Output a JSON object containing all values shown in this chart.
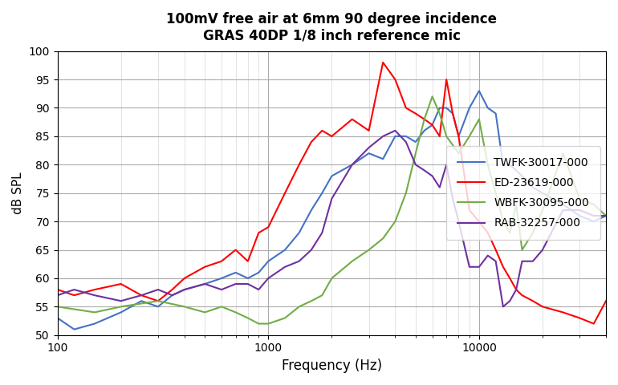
{
  "title_line1": "100mV free air at 6mm 90 degree incidence",
  "title_line2": "GRAS 40DP 1/8 inch reference mic",
  "xlabel": "Frequency (Hz)",
  "ylabel": "dB SPL",
  "xlim": [
    100,
    40000
  ],
  "ylim": [
    50,
    100
  ],
  "yticks": [
    50,
    55,
    60,
    65,
    70,
    75,
    80,
    85,
    90,
    95,
    100
  ],
  "colors": {
    "TWFK": "#4472C4",
    "ED": "#FF0000",
    "WBFK": "#70AD47",
    "RAB": "#7030A0"
  },
  "legend_labels": [
    "TWFK-30017-000",
    "ED-23619-000",
    "WBFK-30095-000",
    "RAB-32257-000"
  ],
  "background_color": "#FFFFFF",
  "TWFK_freq": [
    100,
    120,
    150,
    200,
    250,
    300,
    350,
    400,
    500,
    600,
    700,
    800,
    900,
    1000,
    1200,
    1400,
    1600,
    1800,
    2000,
    2500,
    3000,
    3500,
    4000,
    4500,
    5000,
    5500,
    6000,
    6500,
    7000,
    7500,
    8000,
    9000,
    10000,
    11000,
    12000,
    13000,
    14000,
    15000,
    16000,
    18000,
    20000,
    25000,
    30000,
    35000,
    40000
  ],
  "TWFK_spl": [
    53,
    51,
    52,
    54,
    56,
    55,
    57,
    58,
    59,
    60,
    61,
    60,
    61,
    63,
    65,
    68,
    72,
    75,
    78,
    80,
    82,
    81,
    85,
    85,
    84,
    86,
    87,
    90,
    90,
    89,
    85,
    90,
    93,
    90,
    89,
    80,
    80,
    79,
    78,
    76,
    75,
    73,
    71,
    70,
    71
  ],
  "ED_freq": [
    100,
    120,
    150,
    200,
    250,
    300,
    350,
    400,
    500,
    600,
    700,
    800,
    900,
    1000,
    1200,
    1400,
    1600,
    1800,
    2000,
    2500,
    3000,
    3500,
    4000,
    4500,
    5000,
    5500,
    6000,
    6500,
    7000,
    7500,
    8000,
    9000,
    10000,
    11000,
    12000,
    13000,
    14000,
    15000,
    16000,
    18000,
    20000,
    25000,
    30000,
    35000,
    40000
  ],
  "ED_spl": [
    58,
    57,
    58,
    59,
    57,
    56,
    58,
    60,
    62,
    63,
    65,
    63,
    68,
    69,
    75,
    80,
    84,
    86,
    85,
    88,
    86,
    98,
    95,
    90,
    89,
    88,
    87,
    85,
    95,
    89,
    85,
    72,
    70,
    68,
    65,
    62,
    60,
    58,
    57,
    56,
    55,
    54,
    53,
    52,
    56
  ],
  "WBFK_freq": [
    100,
    150,
    200,
    300,
    400,
    500,
    600,
    700,
    800,
    900,
    1000,
    1200,
    1400,
    1600,
    1800,
    2000,
    2500,
    3000,
    3500,
    4000,
    4500,
    5000,
    5500,
    6000,
    6500,
    7000,
    8000,
    9000,
    10000,
    11000,
    12000,
    13000,
    14000,
    15000,
    16000,
    18000,
    20000,
    25000,
    30000,
    35000,
    40000
  ],
  "WBFK_spl": [
    55,
    54,
    55,
    56,
    55,
    54,
    55,
    54,
    53,
    52,
    52,
    53,
    55,
    56,
    57,
    60,
    63,
    65,
    67,
    70,
    75,
    82,
    88,
    92,
    89,
    85,
    82,
    85,
    88,
    80,
    75,
    70,
    68,
    73,
    65,
    68,
    72,
    82,
    74,
    73,
    71
  ],
  "RAB_freq": [
    100,
    120,
    150,
    200,
    250,
    300,
    350,
    400,
    500,
    600,
    700,
    800,
    900,
    1000,
    1200,
    1400,
    1600,
    1800,
    2000,
    2500,
    3000,
    3500,
    4000,
    4500,
    5000,
    5500,
    6000,
    6500,
    7000,
    7500,
    8000,
    9000,
    10000,
    11000,
    12000,
    13000,
    14000,
    15000,
    16000,
    18000,
    20000,
    25000,
    30000,
    35000,
    40000
  ],
  "RAB_spl": [
    57,
    58,
    57,
    56,
    57,
    58,
    57,
    58,
    59,
    58,
    59,
    59,
    58,
    60,
    62,
    63,
    65,
    68,
    74,
    80,
    83,
    85,
    86,
    84,
    80,
    79,
    78,
    76,
    80,
    74,
    70,
    62,
    62,
    64,
    63,
    55,
    56,
    58,
    63,
    63,
    65,
    72,
    72,
    71,
    71
  ]
}
